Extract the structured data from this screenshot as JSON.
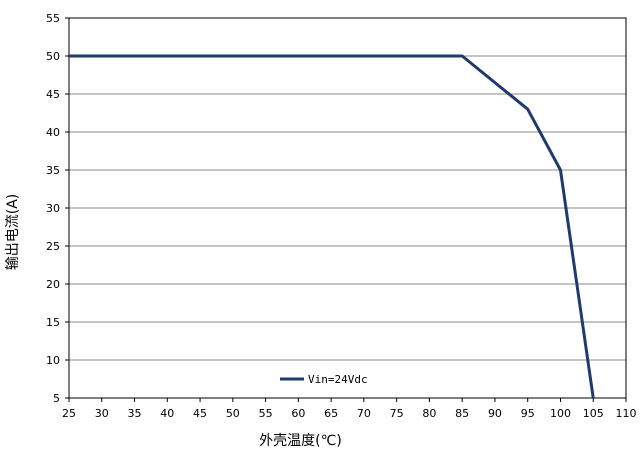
{
  "chart_data": {
    "type": "line",
    "title": "",
    "xlabel": "外壳温度(℃)",
    "ylabel": "输出电流(A)",
    "xlim": [
      25,
      110
    ],
    "ylim": [
      5,
      55
    ],
    "x_ticks": [
      25,
      30,
      35,
      40,
      45,
      50,
      55,
      60,
      65,
      70,
      75,
      80,
      85,
      90,
      95,
      100,
      105,
      110
    ],
    "y_ticks": [
      5,
      10,
      15,
      20,
      25,
      30,
      35,
      40,
      45,
      50,
      55
    ],
    "grid": "horizontal",
    "legend_position": "bottom-left",
    "series": [
      {
        "name": "Vin=24Vdc",
        "color": "#1f3a6e",
        "x": [
          25,
          85,
          95,
          100,
          105
        ],
        "y": [
          50,
          50,
          43,
          35,
          5
        ]
      }
    ]
  }
}
